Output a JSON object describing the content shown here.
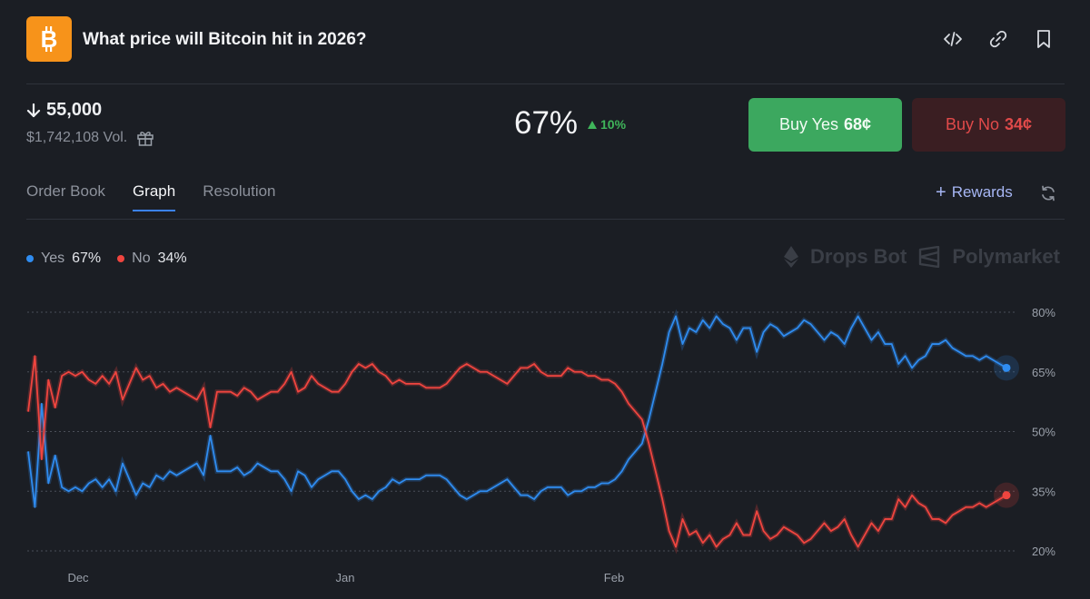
{
  "header": {
    "title": "What price will Bitcoin hit in 2026?",
    "logo_letter": "B",
    "icons": [
      "code-icon",
      "link-icon",
      "bookmark-icon"
    ]
  },
  "market": {
    "target": "55,000",
    "direction": "down",
    "volume": "$1,742,108 Vol.",
    "probability": "67%",
    "change": "10%",
    "change_direction": "up"
  },
  "buttons": {
    "yes_label": "Buy Yes",
    "yes_price": "68¢",
    "no_label": "Buy No",
    "no_price": "34¢"
  },
  "tabs": [
    {
      "label": "Order Book",
      "active": false
    },
    {
      "label": "Graph",
      "active": true
    },
    {
      "label": "Resolution",
      "active": false
    }
  ],
  "rewards_label": "Rewards",
  "legend": {
    "yes_label": "Yes",
    "yes_value": "67%",
    "no_label": "No",
    "no_value": "34%"
  },
  "watermark": {
    "left": "Drops Bot",
    "right": "Polymarket"
  },
  "colors": {
    "yes_series": "#2f8cf0",
    "no_series": "#f0453f",
    "accent_green": "#3ca85f",
    "brand_orange": "#f7931a"
  },
  "chart_data": {
    "type": "line",
    "x_ticks": [
      "Dec",
      "Jan",
      "Feb"
    ],
    "y_ticks": [
      "80%",
      "65%",
      "50%",
      "35%",
      "20%"
    ],
    "ylim": [
      20,
      80
    ],
    "grid": true,
    "series": [
      {
        "name": "Yes",
        "color": "#2f8cf0",
        "values": [
          45,
          31,
          57,
          37,
          44,
          36,
          35,
          36,
          35,
          37,
          38,
          36,
          38,
          35,
          42,
          38,
          34,
          37,
          36,
          39,
          38,
          40,
          39,
          40,
          41,
          42,
          39,
          49,
          40,
          40,
          40,
          41,
          39,
          40,
          42,
          41,
          40,
          40,
          38,
          35,
          40,
          39,
          36,
          38,
          39,
          40,
          40,
          38,
          35,
          33,
          34,
          33,
          35,
          36,
          38,
          37,
          38,
          38,
          38,
          39,
          39,
          39,
          38,
          36,
          34,
          33,
          34,
          35,
          35,
          36,
          37,
          38,
          36,
          34,
          34,
          33,
          35,
          36,
          36,
          36,
          34,
          35,
          35,
          36,
          36,
          37,
          37,
          38,
          40,
          43,
          45,
          47,
          53,
          60,
          67,
          75,
          79,
          72,
          76,
          75,
          78,
          76,
          79,
          77,
          76,
          73,
          76,
          76,
          70,
          75,
          77,
          76,
          74,
          75,
          76,
          78,
          77,
          75,
          73,
          75,
          74,
          72,
          76,
          79,
          76,
          73,
          75,
          72,
          72,
          67,
          69,
          66,
          68,
          69,
          72,
          72,
          73,
          71,
          70,
          69,
          69,
          68,
          69,
          68,
          67,
          66
        ]
      },
      {
        "name": "No",
        "color": "#f0453f",
        "values": [
          55,
          69,
          43,
          63,
          56,
          64,
          65,
          64,
          65,
          63,
          62,
          64,
          62,
          65,
          58,
          62,
          66,
          63,
          64,
          61,
          62,
          60,
          61,
          60,
          59,
          58,
          61,
          51,
          60,
          60,
          60,
          59,
          61,
          60,
          58,
          59,
          60,
          60,
          62,
          65,
          60,
          61,
          64,
          62,
          61,
          60,
          60,
          62,
          65,
          67,
          66,
          67,
          65,
          64,
          62,
          63,
          62,
          62,
          62,
          61,
          61,
          61,
          62,
          64,
          66,
          67,
          66,
          65,
          65,
          64,
          63,
          62,
          64,
          66,
          66,
          67,
          65,
          64,
          64,
          64,
          66,
          65,
          65,
          64,
          64,
          63,
          63,
          62,
          60,
          57,
          55,
          53,
          47,
          40,
          33,
          25,
          21,
          28,
          24,
          25,
          22,
          24,
          21,
          23,
          24,
          27,
          24,
          24,
          30,
          25,
          23,
          24,
          26,
          25,
          24,
          22,
          23,
          25,
          27,
          25,
          26,
          28,
          24,
          21,
          24,
          27,
          25,
          28,
          28,
          33,
          31,
          34,
          32,
          31,
          28,
          28,
          27,
          29,
          30,
          31,
          31,
          32,
          31,
          32,
          33,
          34
        ]
      }
    ]
  }
}
